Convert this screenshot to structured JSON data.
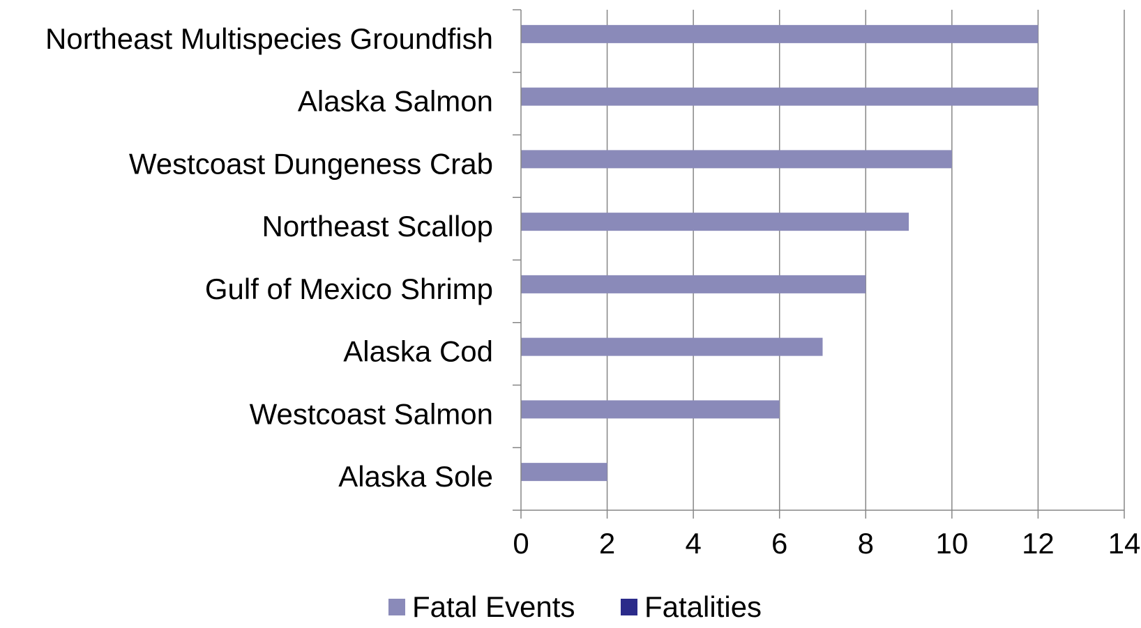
{
  "chart_data": {
    "type": "bar",
    "orientation": "horizontal",
    "categories": [
      "Northeast Multispecies Groundfish",
      "Alaska Salmon",
      "Westcoast Dungeness Crab",
      "Northeast Scallop",
      "Gulf of Mexico Shrimp",
      "Alaska Cod",
      "Westcoast Salmon",
      "Alaska Sole"
    ],
    "series": [
      {
        "name": "Fatal Events",
        "values": [
          12,
          12,
          10,
          9,
          8,
          7,
          6,
          2
        ],
        "color": "#8a8ab9"
      },
      {
        "name": "Fatalities",
        "values": [
          null,
          null,
          null,
          null,
          null,
          null,
          null,
          null
        ],
        "color": "#2b2b8a"
      }
    ],
    "title": "",
    "xlabel": "",
    "ylabel": "",
    "xlim": [
      0,
      14
    ],
    "xticks": [
      0,
      2,
      4,
      6,
      8,
      10,
      12,
      14
    ],
    "grid": "vertical",
    "legend_position": "bottom"
  }
}
